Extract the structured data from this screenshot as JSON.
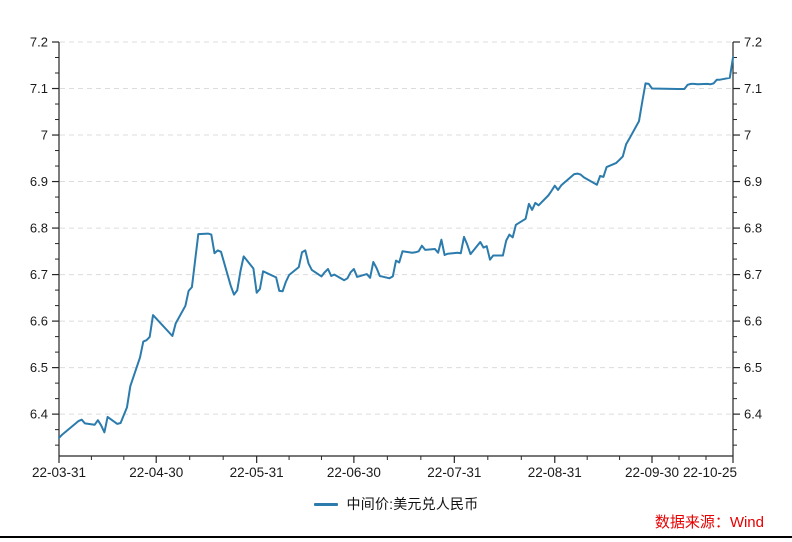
{
  "chart": {
    "legend_label": "中间价:美元兑人民币",
    "source_note": "数据来源：Wind",
    "line_color": "#2b7bad",
    "axis_color": "#262626",
    "grid_color": "#dcdcdc",
    "label_color": "#1a1a1a",
    "note_color": "#e60000"
  },
  "chart_data": {
    "type": "line",
    "title": "",
    "xlabel": "",
    "ylabel": "",
    "grid": "horizontal-dashed",
    "legend_position": "bottom-center",
    "ylim": [
      6.31,
      7.2
    ],
    "x_range": [
      "2022-03-31",
      "2022-10-25"
    ],
    "y_ticks": [
      {
        "label": "6.4",
        "value": 6.4
      },
      {
        "label": "6.5",
        "value": 6.5
      },
      {
        "label": "6.6",
        "value": 6.6
      },
      {
        "label": "6.7",
        "value": 6.7
      },
      {
        "label": "6.8",
        "value": 6.8
      },
      {
        "label": "6.9",
        "value": 6.9
      },
      {
        "label": "7",
        "value": 7.0
      },
      {
        "label": "7.1",
        "value": 7.1
      },
      {
        "label": "7.2",
        "value": 7.2
      }
    ],
    "x_ticks": [
      {
        "label": "22-03-31",
        "date": "2022-03-31"
      },
      {
        "label": "22-04-30",
        "date": "2022-04-30"
      },
      {
        "label": "22-05-31",
        "date": "2022-05-31"
      },
      {
        "label": "22-06-30",
        "date": "2022-06-30"
      },
      {
        "label": "22-07-31",
        "date": "2022-07-31"
      },
      {
        "label": "22-08-31",
        "date": "2022-08-31"
      },
      {
        "label": "22-09-30",
        "date": "2022-09-30"
      },
      {
        "label": "22-10-25",
        "date": "2022-10-25"
      }
    ],
    "series": [
      {
        "name": "中间价:美元兑人民币",
        "color": "#2b7bad",
        "points": [
          [
            "2022-03-31",
            6.349
          ],
          [
            "2022-04-01",
            6.356
          ],
          [
            "2022-04-06",
            6.385
          ],
          [
            "2022-04-07",
            6.388
          ],
          [
            "2022-04-08",
            6.38
          ],
          [
            "2022-04-11",
            6.377
          ],
          [
            "2022-04-12",
            6.387
          ],
          [
            "2022-04-13",
            6.376
          ],
          [
            "2022-04-14",
            6.361
          ],
          [
            "2022-04-15",
            6.394
          ],
          [
            "2022-04-18",
            6.379
          ],
          [
            "2022-04-19",
            6.381
          ],
          [
            "2022-04-20",
            6.398
          ],
          [
            "2022-04-21",
            6.415
          ],
          [
            "2022-04-22",
            6.46
          ],
          [
            "2022-04-25",
            6.522
          ],
          [
            "2022-04-26",
            6.556
          ],
          [
            "2022-04-27",
            6.559
          ],
          [
            "2022-04-28",
            6.566
          ],
          [
            "2022-04-29",
            6.613
          ],
          [
            "2022-05-05",
            6.568
          ],
          [
            "2022-05-06",
            6.595
          ],
          [
            "2022-05-09",
            6.633
          ],
          [
            "2022-05-10",
            6.665
          ],
          [
            "2022-05-11",
            6.673
          ],
          [
            "2022-05-12",
            6.73
          ],
          [
            "2022-05-13",
            6.787
          ],
          [
            "2022-05-16",
            6.788
          ],
          [
            "2022-05-17",
            6.786
          ],
          [
            "2022-05-18",
            6.746
          ],
          [
            "2022-05-19",
            6.752
          ],
          [
            "2022-05-20",
            6.749
          ],
          [
            "2022-05-23",
            6.676
          ],
          [
            "2022-05-24",
            6.657
          ],
          [
            "2022-05-25",
            6.666
          ],
          [
            "2022-05-26",
            6.708
          ],
          [
            "2022-05-27",
            6.739
          ],
          [
            "2022-05-30",
            6.713
          ],
          [
            "2022-05-31",
            6.661
          ],
          [
            "2022-06-01",
            6.669
          ],
          [
            "2022-06-02",
            6.707
          ],
          [
            "2022-06-06",
            6.694
          ],
          [
            "2022-06-07",
            6.665
          ],
          [
            "2022-06-08",
            6.664
          ],
          [
            "2022-06-09",
            6.684
          ],
          [
            "2022-06-10",
            6.699
          ],
          [
            "2022-06-13",
            6.716
          ],
          [
            "2022-06-14",
            6.748
          ],
          [
            "2022-06-15",
            6.752
          ],
          [
            "2022-06-16",
            6.724
          ],
          [
            "2022-06-17",
            6.71
          ],
          [
            "2022-06-20",
            6.696
          ],
          [
            "2022-06-21",
            6.705
          ],
          [
            "2022-06-22",
            6.712
          ],
          [
            "2022-06-23",
            6.697
          ],
          [
            "2022-06-24",
            6.7
          ],
          [
            "2022-06-27",
            6.688
          ],
          [
            "2022-06-28",
            6.692
          ],
          [
            "2022-06-29",
            6.705
          ],
          [
            "2022-06-30",
            6.712
          ],
          [
            "2022-07-01",
            6.695
          ],
          [
            "2022-07-04",
            6.701
          ],
          [
            "2022-07-05",
            6.693
          ],
          [
            "2022-07-06",
            6.727
          ],
          [
            "2022-07-07",
            6.714
          ],
          [
            "2022-07-08",
            6.697
          ],
          [
            "2022-07-11",
            6.692
          ],
          [
            "2022-07-12",
            6.696
          ],
          [
            "2022-07-13",
            6.73
          ],
          [
            "2022-07-14",
            6.726
          ],
          [
            "2022-07-15",
            6.75
          ],
          [
            "2022-07-18",
            6.747
          ],
          [
            "2022-07-19",
            6.748
          ],
          [
            "2022-07-20",
            6.75
          ],
          [
            "2022-07-21",
            6.762
          ],
          [
            "2022-07-22",
            6.753
          ],
          [
            "2022-07-25",
            6.755
          ],
          [
            "2022-07-26",
            6.747
          ],
          [
            "2022-07-27",
            6.775
          ],
          [
            "2022-07-28",
            6.742
          ],
          [
            "2022-07-29",
            6.745
          ],
          [
            "2022-08-01",
            6.747
          ],
          [
            "2022-08-02",
            6.746
          ],
          [
            "2022-08-03",
            6.781
          ],
          [
            "2022-08-04",
            6.764
          ],
          [
            "2022-08-05",
            6.744
          ],
          [
            "2022-08-08",
            6.77
          ],
          [
            "2022-08-09",
            6.758
          ],
          [
            "2022-08-10",
            6.761
          ],
          [
            "2022-08-11",
            6.732
          ],
          [
            "2022-08-12",
            6.741
          ],
          [
            "2022-08-15",
            6.741
          ],
          [
            "2022-08-16",
            6.773
          ],
          [
            "2022-08-17",
            6.786
          ],
          [
            "2022-08-18",
            6.78
          ],
          [
            "2022-08-19",
            6.807
          ],
          [
            "2022-08-22",
            6.82
          ],
          [
            "2022-08-23",
            6.852
          ],
          [
            "2022-08-24",
            6.839
          ],
          [
            "2022-08-25",
            6.854
          ],
          [
            "2022-08-26",
            6.849
          ],
          [
            "2022-08-29",
            6.87
          ],
          [
            "2022-08-30",
            6.88
          ],
          [
            "2022-08-31",
            6.891
          ],
          [
            "2022-09-01",
            6.882
          ],
          [
            "2022-09-02",
            6.892
          ],
          [
            "2022-09-05",
            6.91
          ],
          [
            "2022-09-06",
            6.916
          ],
          [
            "2022-09-07",
            6.917
          ],
          [
            "2022-09-08",
            6.915
          ],
          [
            "2022-09-09",
            6.909
          ],
          [
            "2022-09-13",
            6.893
          ],
          [
            "2022-09-14",
            6.912
          ],
          [
            "2022-09-15",
            6.91
          ],
          [
            "2022-09-16",
            6.931
          ],
          [
            "2022-09-19",
            6.94
          ],
          [
            "2022-09-20",
            6.947
          ],
          [
            "2022-09-21",
            6.954
          ],
          [
            "2022-09-22",
            6.98
          ],
          [
            "2022-09-23",
            6.992
          ],
          [
            "2022-09-26",
            7.03
          ],
          [
            "2022-09-27",
            7.072
          ],
          [
            "2022-09-28",
            7.111
          ],
          [
            "2022-09-29",
            7.11
          ],
          [
            "2022-09-30",
            7.1
          ],
          [
            "2022-10-08",
            7.099
          ],
          [
            "2022-10-09",
            7.099
          ],
          [
            "2022-10-10",
            7.099
          ],
          [
            "2022-10-11",
            7.108
          ],
          [
            "2022-10-12",
            7.11
          ],
          [
            "2022-10-13",
            7.11
          ],
          [
            "2022-10-14",
            7.109
          ],
          [
            "2022-10-17",
            7.11
          ],
          [
            "2022-10-18",
            7.109
          ],
          [
            "2022-10-19",
            7.111
          ],
          [
            "2022-10-20",
            7.119
          ],
          [
            "2022-10-21",
            7.119
          ],
          [
            "2022-10-24",
            7.123
          ],
          [
            "2022-10-25",
            7.167
          ]
        ]
      }
    ]
  }
}
